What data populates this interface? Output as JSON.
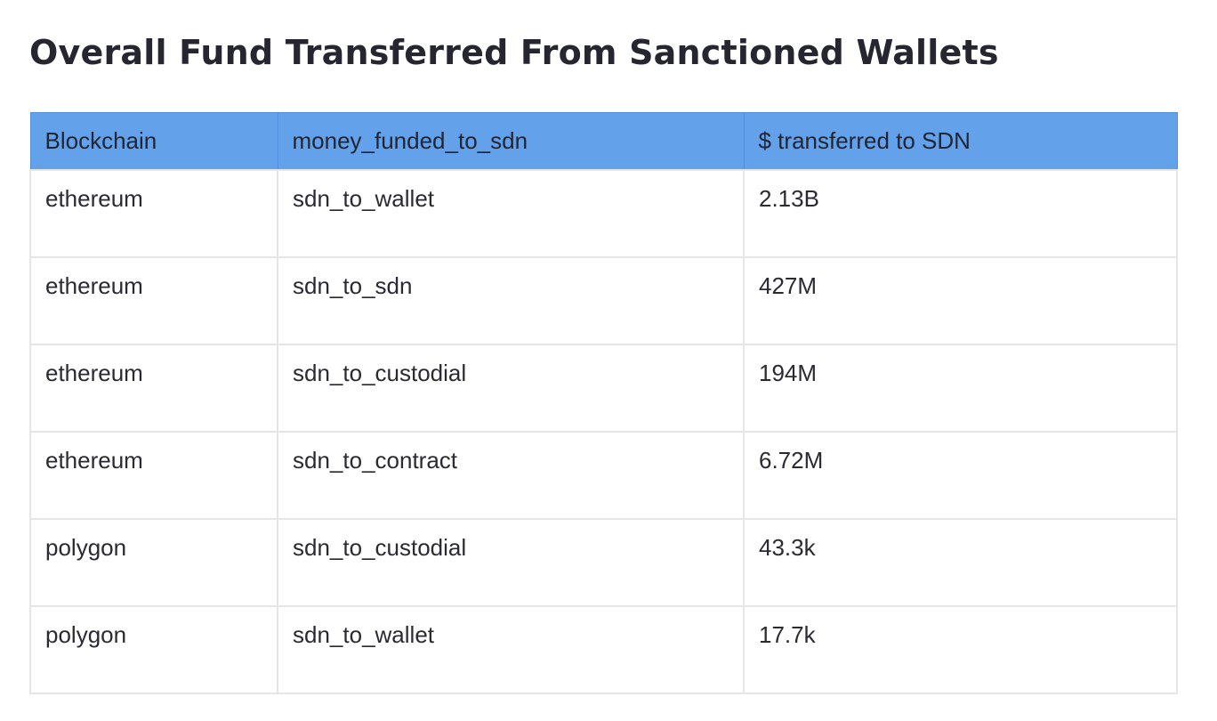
{
  "page": {
    "title": "Overall Fund Transferred From Sanctioned Wallets"
  },
  "table": {
    "columns": [
      "Blockchain",
      "money_funded_to_sdn",
      "$ transferred to SDN"
    ],
    "rows": [
      [
        "ethereum",
        "sdn_to_wallet",
        "2.13B"
      ],
      [
        "ethereum",
        "sdn_to_sdn",
        "427M"
      ],
      [
        "ethereum",
        "sdn_to_custodial",
        "194M"
      ],
      [
        "ethereum",
        "sdn_to_contract",
        "6.72M"
      ],
      [
        "polygon",
        "sdn_to_custodial",
        "43.3k"
      ],
      [
        "polygon",
        "sdn_to_wallet",
        "17.7k"
      ]
    ]
  },
  "colors": {
    "header_background": "#63a2eb",
    "header_border": "#4e8fde",
    "cell_border": "#e6e6e9",
    "text": "#2b2a33"
  }
}
